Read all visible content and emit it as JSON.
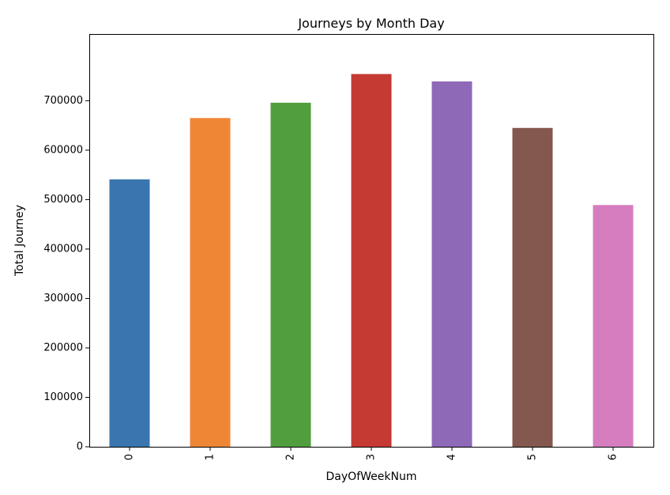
{
  "chart_data": {
    "type": "bar",
    "title": "Journeys by Month Day",
    "xlabel": "DayOfWeekNum",
    "ylabel": "Total Journey",
    "categories": [
      "0",
      "1",
      "2",
      "3",
      "4",
      "5",
      "6"
    ],
    "values": [
      541000,
      665000,
      696000,
      754000,
      739000,
      645000,
      489000
    ],
    "colors": [
      "#3a75af",
      "#ef8636",
      "#519e3e",
      "#c53a32",
      "#8d69b8",
      "#84584e",
      "#d57dbf"
    ],
    "ylim": [
      0,
      835000
    ],
    "yticks": [
      0,
      100000,
      200000,
      300000,
      400000,
      500000,
      600000,
      700000
    ],
    "ytick_labels": [
      "0",
      "100000",
      "200000",
      "300000",
      "400000",
      "500000",
      "600000",
      "700000"
    ],
    "xtick_rotation": 90,
    "grid": false,
    "legend": "none"
  }
}
